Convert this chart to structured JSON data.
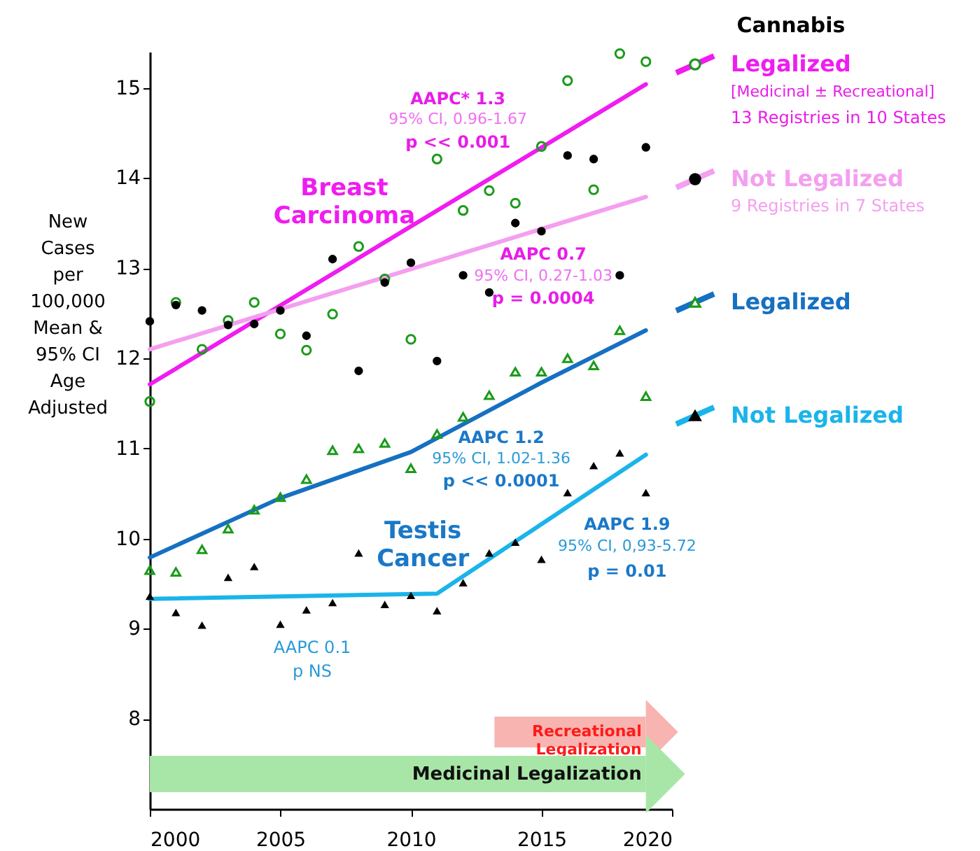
{
  "chart_data": {
    "type": "scatter",
    "legend_title": "Cannabis",
    "ylabel": "New\nCases\nper\n100,000\n\nMean &\n95% CI\n\nAge\nAdjusted",
    "x": [
      2000,
      2001,
      2002,
      2003,
      2004,
      2005,
      2006,
      2007,
      2008,
      2009,
      2010,
      2011,
      2012,
      2013,
      2014,
      2015,
      2016,
      2017,
      2018,
      2019
    ],
    "series": [
      {
        "marker": "circle",
        "color": "#1a9a1a",
        "values": [
          11.52,
          12.62,
          12.1,
          12.42,
          12.62,
          12.27,
          12.09,
          12.49,
          13.24,
          12.88,
          12.21,
          14.21,
          13.64,
          13.86,
          13.72,
          14.35,
          15.08,
          13.87,
          15.38,
          15.29
        ]
      },
      {
        "marker": "circle",
        "color": "#000000",
        "values": [
          12.41,
          12.59,
          12.53,
          12.37,
          12.38,
          12.53,
          12.25,
          13.1,
          11.86,
          12.84,
          13.06,
          11.97,
          12.92,
          12.73,
          13.5,
          13.41,
          14.25,
          14.21,
          12.92,
          14.34
        ]
      },
      {
        "marker": "triangle",
        "color": "#1a9a1a",
        "values": [
          9.65,
          9.63,
          9.88,
          10.11,
          10.32,
          10.46,
          10.66,
          10.98,
          11.0,
          11.06,
          10.78,
          11.16,
          11.35,
          11.59,
          11.85,
          11.85,
          12.0,
          11.92,
          12.31,
          11.58
        ]
      },
      {
        "marker": "triangle",
        "color": "#000000",
        "values": [
          9.36,
          9.18,
          9.04,
          9.57,
          9.69,
          9.05,
          9.21,
          9.29,
          9.84,
          9.27,
          9.37,
          9.2,
          9.51,
          9.84,
          9.96,
          9.77,
          10.51,
          10.81,
          10.95,
          10.51
        ]
      },
      {
        "type": "line",
        "line_style": "solid",
        "name": "Legalized",
        "color": "#f01cf0",
        "x": [
          2000,
          2019
        ],
        "values": [
          11.71,
          15.04
        ]
      },
      {
        "type": "line",
        "line_style": "solid",
        "name": "Not Legalized",
        "color": "#f49ff0",
        "x": [
          2000,
          2019
        ],
        "values": [
          12.1,
          13.79
        ]
      },
      {
        "type": "line",
        "line_style": "solid",
        "name": "Legalized",
        "color": "#1670c2",
        "x": [
          2000,
          2005,
          2010,
          2015,
          2019
        ],
        "values": [
          9.79,
          10.45,
          10.96,
          11.73,
          12.31
        ]
      },
      {
        "type": "line",
        "line_style": "solid",
        "name": "Not Legalized",
        "color": "#1ab4ea",
        "x": [
          2000,
          2011,
          2019
        ],
        "values": [
          9.33,
          9.39,
          10.93
        ]
      }
    ],
    "annotations": [
      "AAPC* 1.3",
      "95% CI, 0.96-1.67",
      "p << 0.001",
      "Breast\nCarcinoma",
      "AAPC 0.7",
      "95% CI, 0.27-1.03",
      "p = 0.0004",
      "AAPC 1.2",
      "95% CI, 1.02-1.36",
      "p << 0.0001",
      "Testis\nCancer",
      "AAPC 1.9",
      "95% CI, 0,93-5.72",
      "p = 0.01",
      "AAPC 0.1",
      "p NS",
      "[Medicinal ± Recreational]",
      "13 Registries in 10 States",
      "9 Registries in 7 States"
    ],
    "bands": [
      {
        "axis": "x",
        "from": 2013.2,
        "to": 2019.0,
        "label": "Recreational\nLegalization",
        "color": "#f8b4b0"
      },
      {
        "axis": "x",
        "from": 2000,
        "to": 2019.0,
        "label": "Medicinal Legalization",
        "color": "#a8e6a8"
      }
    ],
    "xlim": [
      2000,
      2020
    ],
    "xticks": [
      2000,
      2005,
      2010,
      2015,
      2020
    ],
    "ylim": [
      7.0,
      15.4
    ],
    "yticks": [
      8,
      9,
      10,
      11,
      12,
      13,
      14,
      15
    ],
    "legend": "right"
  }
}
